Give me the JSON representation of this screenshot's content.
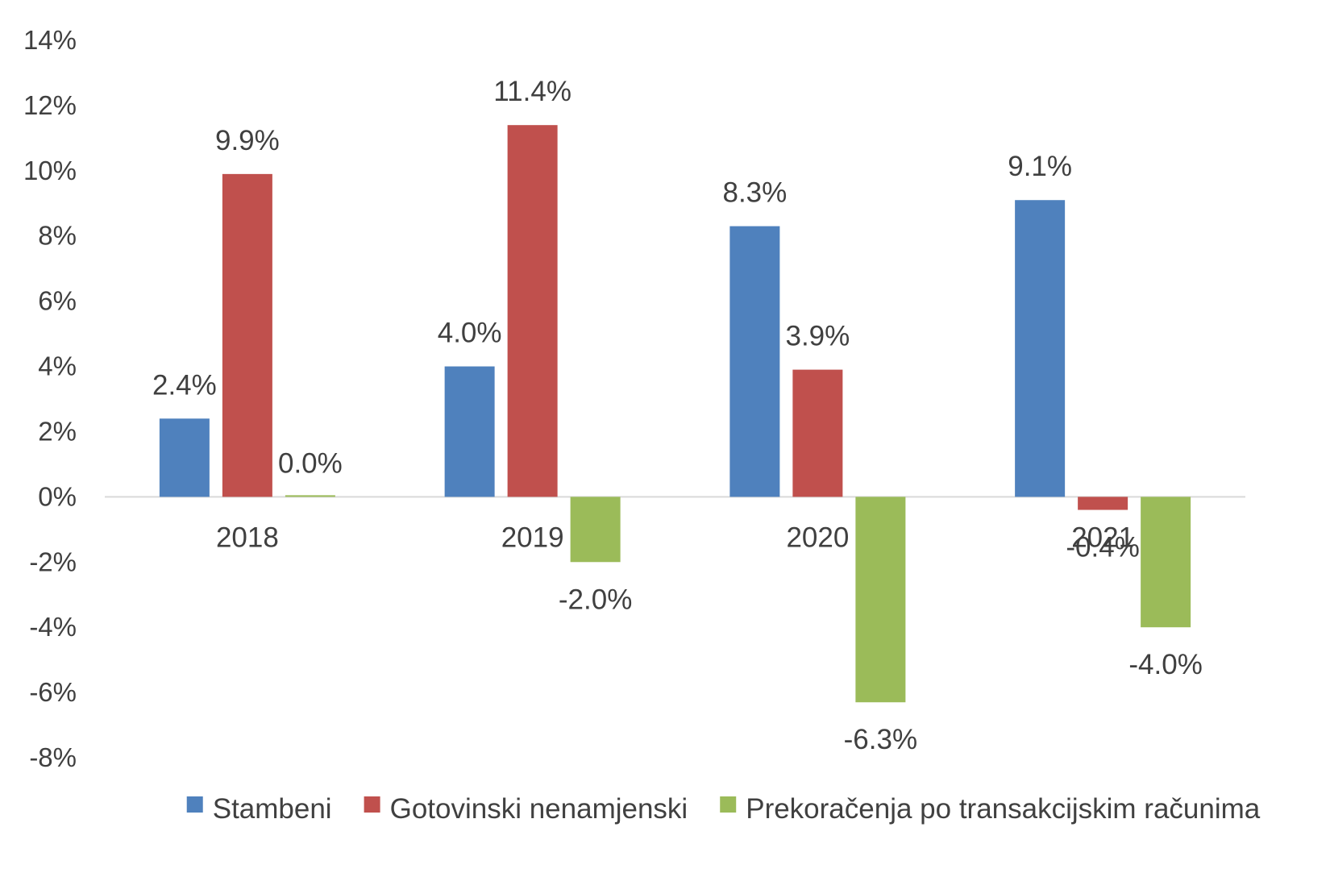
{
  "chart_data": {
    "type": "bar",
    "categories": [
      "2018",
      "2019",
      "2020",
      "2021"
    ],
    "series": [
      {
        "name": "Stambeni",
        "color": "#4F81BD",
        "values": [
          2.4,
          4.0,
          8.3,
          9.1
        ],
        "labels": [
          "2.4%",
          "4.0%",
          "8.3%",
          "9.1%"
        ]
      },
      {
        "name": "Gotovinski nenamjenski",
        "color": "#C0504D",
        "values": [
          9.9,
          11.4,
          3.9,
          -0.4
        ],
        "labels": [
          "9.9%",
          "11.4%",
          "3.9%",
          "-0.4%"
        ]
      },
      {
        "name": "Prekoračenja po transakcijskim računima",
        "color": "#9BBB59",
        "values": [
          0.0,
          -2.0,
          -6.3,
          -4.0
        ],
        "labels": [
          "0.0%",
          "-2.0%",
          "-6.3%",
          "-4.0%"
        ]
      }
    ],
    "yticks": [
      "14%",
      "12%",
      "10%",
      "8%",
      "6%",
      "4%",
      "2%",
      "0%",
      "-2%",
      "-4%",
      "-6%",
      "-8%"
    ],
    "ylim": [
      -8,
      14
    ],
    "grid": false,
    "legend_position": "bottom"
  }
}
